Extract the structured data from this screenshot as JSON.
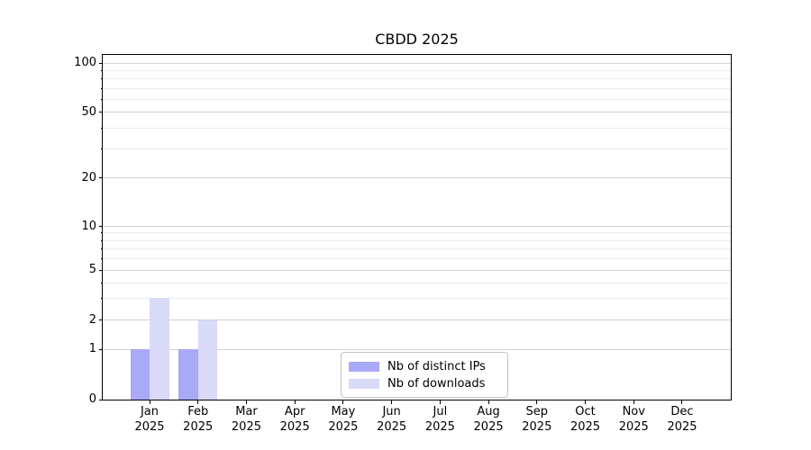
{
  "figure": {
    "background": "#ffffff"
  },
  "chart_data": {
    "type": "bar",
    "title": "CBDD 2025",
    "xlabel": "",
    "ylabel": "",
    "categories": [
      "Jan 2025",
      "Feb 2025",
      "Mar 2025",
      "Apr 2025",
      "May 2025",
      "Jun 2025",
      "Jul 2025",
      "Aug 2025",
      "Sep 2025",
      "Oct 2025",
      "Nov 2025",
      "Dec 2025"
    ],
    "series": [
      {
        "name": "Nb of distinct IPs",
        "color": "#a9a9f7",
        "values": [
          1,
          1,
          0,
          0,
          0,
          0,
          0,
          0,
          0,
          0,
          0,
          0
        ]
      },
      {
        "name": "Nb of downloads",
        "color": "#d9d9f8",
        "values": [
          3,
          2,
          0,
          0,
          0,
          0,
          0,
          0,
          0,
          0,
          0,
          0
        ]
      }
    ],
    "y_axis": {
      "scale": "linear below 1, log above 1",
      "major_ticks": [
        0,
        1,
        2,
        5,
        10,
        20,
        50,
        100
      ],
      "minor_gridlines": [
        3,
        4,
        6,
        7,
        8,
        9,
        30,
        40,
        60,
        70,
        80,
        90
      ],
      "range": [
        0,
        112
      ]
    },
    "grid": {
      "horizontal": true,
      "vertical": false,
      "major_color": "#d2d2d2",
      "minor_color": "#ececec"
    },
    "legend": {
      "position": "lower center",
      "border_color": "#c4c4c4",
      "background": "#ffffff"
    },
    "y_scale_anchors": [
      [
        0,
        0
      ],
      [
        1,
        0.1462
      ],
      [
        2,
        0.2298
      ],
      [
        5,
        0.3747
      ],
      [
        10,
        0.5026
      ],
      [
        20,
        0.6423
      ],
      [
        50,
        0.8342
      ],
      [
        100,
        0.9765
      ]
    ]
  }
}
